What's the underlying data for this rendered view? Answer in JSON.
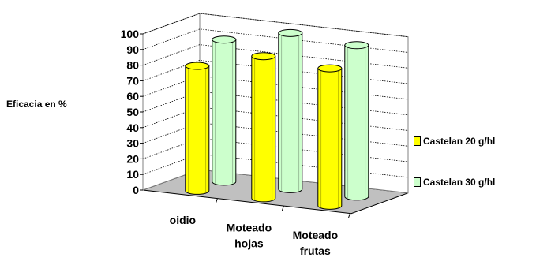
{
  "chart_data": {
    "type": "bar",
    "style": "3d-cylinder",
    "ylabel": "Eficacia en %",
    "xlabel": "",
    "title": "",
    "ylim": [
      0,
      100
    ],
    "yticks": [
      0,
      10,
      20,
      30,
      40,
      50,
      60,
      70,
      80,
      90,
      100
    ],
    "categories": [
      "oidio",
      "Moteado hojas",
      "Moteado frutas"
    ],
    "series": [
      {
        "name": "Castelan 20 g/hl",
        "color": "#ffff00",
        "values": [
          80,
          91,
          88
        ]
      },
      {
        "name": "Castelan 30 g/hl",
        "color": "#ccffcc",
        "values": [
          91,
          100,
          97
        ]
      }
    ],
    "grid": true,
    "legend_position": "right"
  }
}
